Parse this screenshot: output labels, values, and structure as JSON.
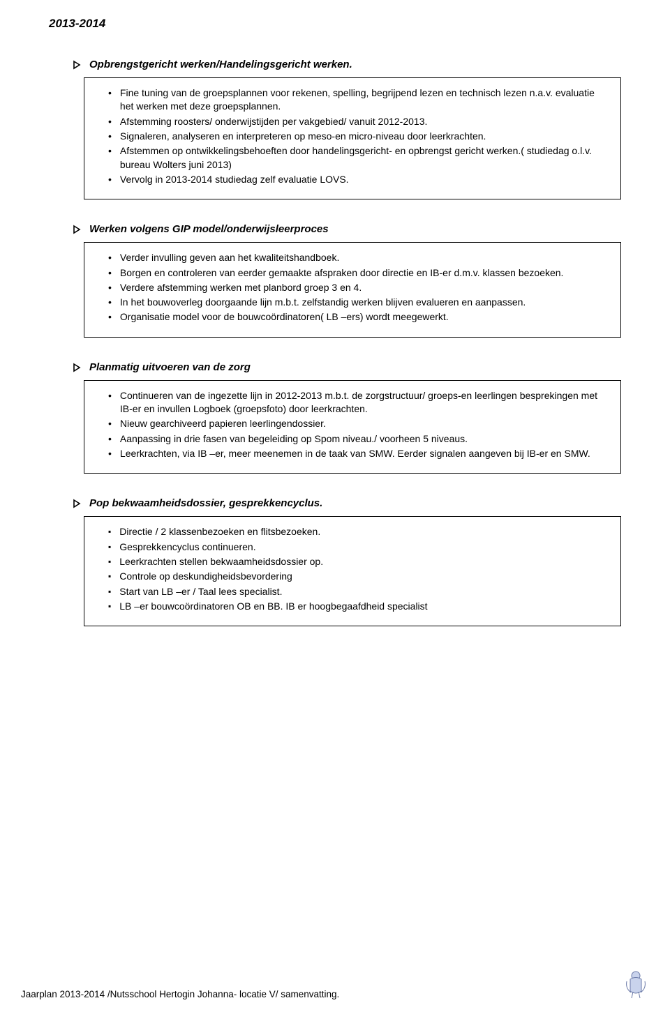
{
  "colors": {
    "text": "#000000",
    "background": "#ffffff",
    "border": "#000000",
    "icon_stroke": "#6b7aa8",
    "icon_fill": "#c9d3ec"
  },
  "typography": {
    "family": "Verdana, Geneva, sans-serif",
    "title_size_pt": 13,
    "heading_size_pt": 11,
    "body_size_pt": 10.5,
    "footer_size_pt": 10
  },
  "page_title": "2013-2014",
  "sections": [
    {
      "heading": "Opbrengstgericht werken/Handelingsgericht werken.",
      "bullet_style": "dot",
      "justify": false,
      "items": [
        "Fine tuning van de groepsplannen voor rekenen, spelling, begrijpend lezen en technisch lezen n.a.v. evaluatie het werken met deze groepsplannen.",
        "Afstemming roosters/ onderwijstijden per vakgebied/ vanuit 2012-2013.",
        "Signaleren, analyseren en interpreteren op meso-en micro-niveau door leerkrachten.",
        "Afstemmen op ontwikkelingsbehoeften door handelingsgericht- en opbrengst gericht werken.( studiedag o.l.v. bureau Wolters juni 2013)",
        "Vervolg in 2013-2014 studiedag zelf evaluatie LOVS."
      ]
    },
    {
      "heading": "Werken volgens GIP model/onderwijsleerproces",
      "bullet_style": "dot",
      "justify": true,
      "items": [
        "Verder invulling geven aan het kwaliteitshandboek.",
        "Borgen en controleren van eerder gemaakte afspraken door directie en IB-er d.m.v. klassen bezoeken.",
        "Verdere afstemming werken met planbord groep 3 en 4.",
        "In het bouwoverleg doorgaande lijn m.b.t. zelfstandig werken blijven evalueren en aanpassen.",
        "Organisatie model voor de bouwcoördinatoren( LB –ers) wordt meegewerkt."
      ]
    },
    {
      "heading": "Planmatig uitvoeren van de zorg",
      "bullet_style": "dot",
      "justify": false,
      "items": [
        "Continueren van de ingezette lijn in 2012-2013 m.b.t. de zorgstructuur/ groeps-en leerlingen besprekingen met IB-er en invullen Logboek (groepsfoto) door leerkrachten.",
        "Nieuw gearchiveerd papieren leerlingendossier.",
        "Aanpassing in  drie fasen van begeleiding op Spom niveau./ voorheen 5 niveaus.",
        "Leerkrachten, via IB –er, meer meenemen in de taak van SMW. Eerder signalen aangeven bij IB-er en SMW."
      ]
    },
    {
      "heading": "Pop bekwaamheidsdossier, gesprekkencyclus.",
      "bullet_style": "sq",
      "justify": false,
      "items": [
        "Directie / 2 klassenbezoeken en flitsbezoeken.",
        "Gesprekkencyclus continueren.",
        "Leerkrachten stellen bekwaamheidsdossier op.",
        "Controle op deskundigheidsbevordering",
        "Start van LB –er / Taal lees specialist.",
        "LB –er bouwcoördinatoren OB en BB. IB er hoogbegaafdheid specialist"
      ]
    }
  ],
  "footer_text": "Jaarplan 2013-2014 /Nutsschool Hertogin Johanna- locatie V/ samenvatting."
}
